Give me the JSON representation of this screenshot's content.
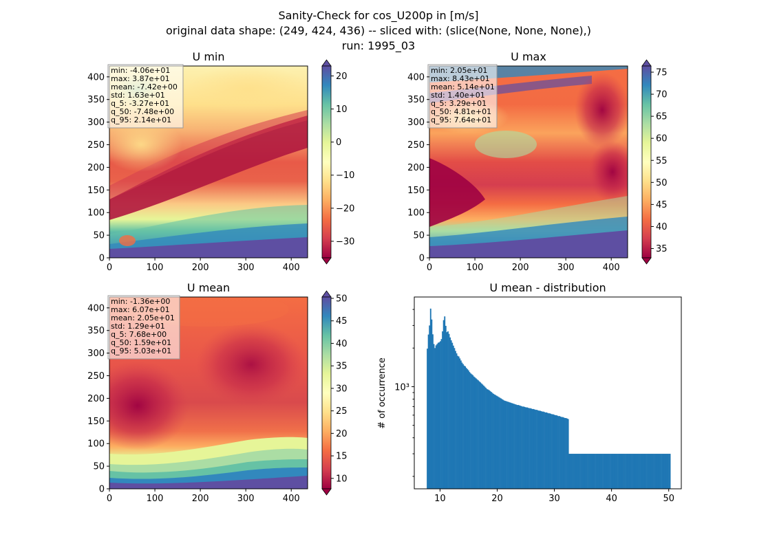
{
  "figure": {
    "title_lines": [
      "Sanity-Check for cos_U200p in [m/s]",
      "original data shape: (249, 424, 436) -- sliced with: (slice(None, None, None),)",
      "run: 1995_03"
    ]
  },
  "chart_data": [
    {
      "type": "heatmap",
      "title": "U min",
      "colormap": "Spectral",
      "xlim": [
        0,
        436
      ],
      "ylim": [
        0,
        424
      ],
      "xticks": [
        "0",
        "100",
        "200",
        "300",
        "400"
      ],
      "yticks": [
        "0",
        "50",
        "100",
        "150",
        "200",
        "250",
        "300",
        "350",
        "400"
      ],
      "colorbar": {
        "range": [
          -35,
          23
        ],
        "ticks": [
          "20",
          "10",
          "0",
          "−10",
          "−20",
          "−30"
        ],
        "tick_values": [
          20,
          10,
          0,
          -10,
          -20,
          -30
        ]
      },
      "stats": [
        "min: -4.06e+01",
        "max: 3.87e+01",
        "mean: -7.42e+00",
        "std: 1.63e+01",
        "q_5: -3.27e+01",
        "q_50: -7.48e+00",
        "q_95: 2.14e+01"
      ]
    },
    {
      "type": "heatmap",
      "title": "U max",
      "colormap": "Spectral",
      "xlim": [
        0,
        436
      ],
      "ylim": [
        0,
        424
      ],
      "xticks": [
        "0",
        "100",
        "200",
        "300",
        "400"
      ],
      "yticks": [
        "0",
        "50",
        "100",
        "150",
        "200",
        "250",
        "300",
        "350",
        "400"
      ],
      "colorbar": {
        "range": [
          32.9,
          76.4
        ],
        "ticks": [
          "75",
          "70",
          "65",
          "60",
          "55",
          "50",
          "45",
          "40",
          "35"
        ],
        "tick_values": [
          75,
          70,
          65,
          60,
          55,
          50,
          45,
          40,
          35
        ]
      },
      "stats": [
        "min: 2.05e+01",
        "max: 8.43e+01",
        "mean: 5.14e+01",
        "std: 1.40e+01",
        "q_5: 3.29e+01",
        "q_50: 4.81e+01",
        "q_95: 7.64e+01"
      ]
    },
    {
      "type": "heatmap",
      "title": "U mean",
      "colormap": "Spectral",
      "xlim": [
        0,
        436
      ],
      "ylim": [
        0,
        424
      ],
      "xticks": [
        "0",
        "100",
        "200",
        "300",
        "400"
      ],
      "yticks": [
        "0",
        "50",
        "100",
        "150",
        "200",
        "250",
        "300",
        "350",
        "400"
      ],
      "colorbar": {
        "range": [
          7.68,
          50.3
        ],
        "ticks": [
          "50",
          "45",
          "40",
          "35",
          "30",
          "25",
          "20",
          "15",
          "10"
        ],
        "tick_values": [
          50,
          45,
          40,
          35,
          30,
          25,
          20,
          15,
          10
        ]
      },
      "stats": [
        "min: -1.36e+00",
        "max: 6.07e+01",
        "mean: 2.05e+01",
        "std: 1.29e+01",
        "q_5: 7.68e+00",
        "q_50: 1.59e+01",
        "q_95: 5.03e+01"
      ]
    },
    {
      "type": "bar",
      "title": "U mean - distribution",
      "ylabel": "# of occurrence",
      "yscale": "log",
      "xlim": [
        5.5,
        52.2
      ],
      "ylim": [
        160,
        5000
      ],
      "xticks": [
        "10",
        "20",
        "30",
        "40",
        "50"
      ],
      "ytick_label": "10³",
      "bar_color": "#1f77b4",
      "bin_edges": [
        7.68,
        50.3
      ],
      "counts": [
        1980,
        2550,
        3000,
        4060,
        3340,
        2560,
        2150,
        2000,
        2100,
        2150,
        2200,
        2220,
        2260,
        2350,
        2700,
        3300,
        3530,
        2980,
        2660,
        2700,
        2580,
        2420,
        2300,
        2200,
        2090,
        2000,
        1900,
        1820,
        1740,
        1720,
        1660,
        1600,
        1540,
        1500,
        1460,
        1440,
        1400,
        1370,
        1340,
        1300,
        1270,
        1250,
        1230,
        1200,
        1180,
        1160,
        1140,
        1120,
        1100,
        1080,
        1060,
        1040,
        1020,
        1000,
        980,
        960,
        950,
        940,
        925,
        910,
        895,
        880,
        870,
        860,
        850,
        840,
        830,
        820,
        810,
        800,
        790,
        780,
        775,
        770,
        765,
        760,
        755,
        750,
        745,
        740,
        735,
        730,
        725,
        720,
        720,
        715,
        710,
        705,
        700,
        700,
        695,
        690,
        690,
        685,
        680,
        680,
        675,
        670,
        670,
        665,
        660,
        660,
        655,
        650,
        650,
        645,
        640,
        640,
        635,
        630,
        630,
        625,
        620,
        620,
        615,
        610,
        610,
        605,
        600,
        600,
        595,
        590,
        590,
        585,
        580,
        580,
        575,
        570,
        570,
        565,
        560,
        300,
        300,
        300,
        300,
        300,
        300,
        300,
        300,
        300,
        300,
        300,
        300,
        300,
        300,
        300,
        300,
        300,
        300,
        300,
        300,
        300,
        300,
        300,
        300,
        300,
        300,
        300,
        300,
        300,
        300,
        300,
        300,
        300,
        300,
        300,
        300,
        300,
        300,
        300,
        300,
        300,
        300,
        300,
        300,
        300,
        300,
        300,
        300,
        300,
        300,
        300,
        300,
        300,
        300,
        300,
        300,
        300,
        300,
        300,
        300,
        300,
        300,
        300,
        300,
        300,
        300,
        300,
        300,
        300,
        300,
        300,
        300,
        300,
        300,
        300,
        300,
        300,
        300,
        300,
        300,
        300,
        300,
        300,
        300,
        300,
        300,
        300,
        300,
        300,
        300,
        300,
        300,
        300,
        300
      ]
    }
  ]
}
